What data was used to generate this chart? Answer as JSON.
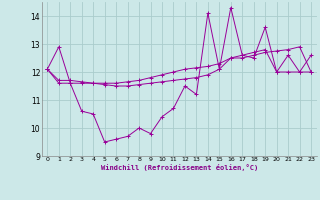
{
  "xlabel": "Windchill (Refroidissement éolien,°C)",
  "bg_color": "#cce8e8",
  "grid_color": "#aacccc",
  "line_color": "#990099",
  "ylim": [
    9,
    14.5
  ],
  "xlim": [
    -0.5,
    23.5
  ],
  "yticks": [
    9,
    10,
    11,
    12,
    13,
    14
  ],
  "xticks": [
    0,
    1,
    2,
    3,
    4,
    5,
    6,
    7,
    8,
    9,
    10,
    11,
    12,
    13,
    14,
    15,
    16,
    17,
    18,
    19,
    20,
    21,
    22,
    23
  ],
  "lines": [
    {
      "x": [
        0,
        1,
        2,
        3,
        4,
        5,
        6,
        7,
        8,
        9,
        10,
        11,
        12,
        13,
        14,
        15,
        16,
        17,
        18,
        19,
        20,
        21,
        22,
        23
      ],
      "y": [
        12.1,
        12.9,
        11.6,
        10.6,
        10.5,
        9.5,
        9.6,
        9.7,
        10.0,
        9.8,
        10.4,
        10.7,
        11.5,
        11.2,
        14.1,
        12.1,
        14.3,
        12.6,
        12.5,
        13.6,
        12.0,
        12.6,
        12.0,
        12.6
      ]
    },
    {
      "x": [
        0,
        1,
        2,
        3,
        4,
        5,
        6,
        7,
        8,
        9,
        10,
        11,
        12,
        13,
        14,
        15,
        16,
        17,
        18,
        19,
        20,
        21,
        22,
        23
      ],
      "y": [
        12.1,
        11.7,
        11.7,
        11.65,
        11.6,
        11.55,
        11.5,
        11.5,
        11.55,
        11.6,
        11.65,
        11.7,
        11.75,
        11.8,
        11.9,
        12.1,
        12.5,
        12.5,
        12.6,
        12.7,
        12.75,
        12.8,
        12.9,
        12.0
      ]
    },
    {
      "x": [
        0,
        1,
        2,
        3,
        4,
        5,
        6,
        7,
        8,
        9,
        10,
        11,
        12,
        13,
        14,
        15,
        16,
        17,
        18,
        19,
        20,
        21,
        22,
        23
      ],
      "y": [
        12.1,
        11.6,
        11.6,
        11.6,
        11.6,
        11.6,
        11.6,
        11.65,
        11.7,
        11.8,
        11.9,
        12.0,
        12.1,
        12.15,
        12.2,
        12.3,
        12.5,
        12.6,
        12.7,
        12.8,
        12.0,
        12.0,
        12.0,
        12.0
      ]
    }
  ]
}
